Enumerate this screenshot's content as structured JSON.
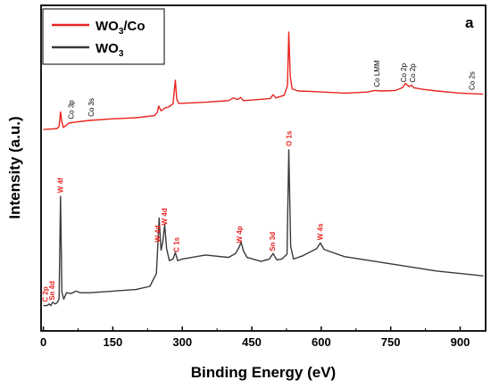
{
  "chart_data": {
    "type": "line",
    "panel_label": "a",
    "xlabel": "Binding Energy (eV)",
    "ylabel": "Intensity (a.u.)",
    "xlim": [
      -5,
      955
    ],
    "xticks": [
      0,
      150,
      300,
      450,
      600,
      750,
      900
    ],
    "legend": {
      "placement": "top-left",
      "entries": [
        "WO3/Co",
        "WO3"
      ]
    },
    "colors": {
      "WO3/Co": "#e8231e",
      "WO3": "#3a3a3a"
    },
    "series": [
      {
        "name": "WO3/Co",
        "x": [
          0,
          20,
          30,
          34,
          37,
          40,
          43,
          48,
          55,
          70,
          100,
          150,
          200,
          240,
          246,
          249,
          254,
          258,
          262,
          270,
          280,
          285,
          288,
          292,
          300,
          350,
          400,
          410,
          420,
          426,
          432,
          450,
          490,
          496,
          502,
          520,
          527,
          530,
          533,
          537,
          550,
          580,
          650,
          700,
          715,
          730,
          760,
          775,
          782,
          790,
          795,
          800,
          820,
          850,
          900,
          950
        ],
        "y": [
          8,
          9,
          10,
          14,
          41,
          22,
          12,
          15,
          20,
          22,
          25,
          28,
          30,
          34,
          40,
          52,
          43,
          45,
          48,
          50,
          56,
          100,
          65,
          57,
          57,
          59,
          62,
          67,
          64,
          68,
          62,
          63,
          66,
          73,
          67,
          72,
          90,
          190,
          108,
          84,
          80,
          79,
          76,
          78,
          81,
          80,
          81,
          86,
          94,
          88,
          91,
          86,
          83,
          80,
          76,
          74
        ]
      },
      {
        "name": "WO3",
        "x": [
          0,
          8,
          12,
          16,
          20,
          26,
          30,
          34,
          37,
          40,
          44,
          50,
          60,
          70,
          80,
          100,
          150,
          200,
          230,
          244,
          250,
          254,
          258,
          262,
          266,
          272,
          280,
          285,
          290,
          300,
          350,
          400,
          415,
          422,
          427,
          432,
          440,
          470,
          488,
          496,
          504,
          515,
          526,
          530,
          534,
          540,
          560,
          590,
          598,
          606,
          650,
          750,
          850,
          950
        ],
        "y": [
          6,
          6,
          8,
          6,
          10,
          8,
          10,
          14,
          142,
          23,
          14,
          22,
          21,
          24,
          22,
          22,
          24,
          26,
          30,
          46,
          115,
          75,
          86,
          107,
          77,
          62,
          64,
          72,
          62,
          64,
          69,
          66,
          71,
          78,
          85,
          74,
          66,
          61,
          64,
          71,
          63,
          64,
          70,
          200,
          80,
          64,
          68,
          77,
          84,
          76,
          67,
          58,
          49,
          43
        ]
      }
    ],
    "annotations": {
      "WO3/Co": [
        {
          "text": "Co 3p",
          "x": 60
        },
        {
          "text": "Co 3s",
          "x": 103
        },
        {
          "text": "Co LMM",
          "x": 720
        },
        {
          "text": "Co 2p",
          "x": 778
        },
        {
          "text": "Co 2p",
          "x": 797
        },
        {
          "text": "Co 2s",
          "x": 925
        }
      ],
      "WO3": [
        {
          "text": "C 2p",
          "x": 4
        },
        {
          "text": "Sn 4d",
          "x": 18
        },
        {
          "text": "W 4f",
          "x": 36
        },
        {
          "text": "W 4d",
          "x": 247
        },
        {
          "text": "W 4d",
          "x": 261
        },
        {
          "text": "C 1s",
          "x": 287
        },
        {
          "text": "W 4p",
          "x": 423
        },
        {
          "text": "Sn 3d",
          "x": 494
        },
        {
          "text": "O 1s",
          "x": 530
        },
        {
          "text": "W 4s",
          "x": 597
        }
      ]
    }
  }
}
